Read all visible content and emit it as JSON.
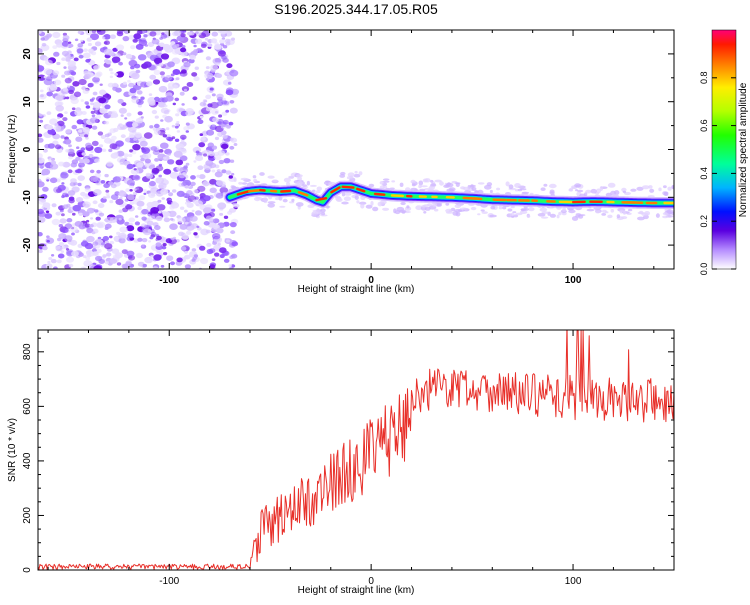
{
  "title": "S196.2025.344.17.05.R05",
  "chart_data": [
    {
      "type": "heatmap",
      "xlabel": "Height of straight line (km)",
      "ylabel": "Frequency (Hz)",
      "xlim": [
        -165,
        150
      ],
      "ylim": [
        -25,
        25
      ],
      "xticks": [
        -100,
        0,
        100
      ],
      "yticks": [
        -20,
        -10,
        0,
        10,
        20
      ],
      "noise_region_x": [
        -165,
        -67
      ],
      "ridge": {
        "x": [
          -70,
          -62,
          -55,
          -45,
          -38,
          -32,
          -27,
          -24,
          -20,
          -15,
          -10,
          -5,
          0,
          10,
          20,
          30,
          40,
          50,
          60,
          70,
          80,
          90,
          100,
          110,
          120,
          130,
          140,
          150
        ],
        "freq": [
          -10,
          -8.8,
          -8.5,
          -8.8,
          -8.6,
          -9.5,
          -10.6,
          -11,
          -9,
          -7.8,
          -7.8,
          -8.5,
          -9.2,
          -9.6,
          -9.8,
          -9.9,
          -10,
          -10.2,
          -10.5,
          -10.6,
          -10.7,
          -10.9,
          -11,
          -10.9,
          -11,
          -11.1,
          -11.2,
          -11.2
        ]
      },
      "colorbar": {
        "label": "Normalized spectral amplitude",
        "range": [
          0,
          1
        ],
        "ticks": [
          0,
          0.2,
          0.4,
          0.6,
          0.8
        ],
        "tick_labels": [
          "0.0",
          "0.2",
          "0.4",
          "0.6",
          "0.8"
        ]
      }
    },
    {
      "type": "line",
      "xlabel": "Height of straight line (km)",
      "ylabel": "SNR (10 * v/v)",
      "xlim": [
        -165,
        150
      ],
      "ylim": [
        0,
        880
      ],
      "xticks": [
        -100,
        0,
        100
      ],
      "yticks": [
        0,
        200,
        400,
        600,
        800
      ],
      "color": "#e8302a",
      "envelope": {
        "x": [
          -165,
          -60,
          -55,
          -45,
          -35,
          -25,
          -15,
          -5,
          5,
          15,
          20,
          25,
          30,
          40,
          60,
          80,
          100,
          120,
          150
        ],
        "snr": [
          12,
          12,
          140,
          195,
          235,
          285,
          345,
          395,
          455,
          520,
          610,
          650,
          670,
          670,
          660,
          640,
          630,
          625,
          620
        ]
      }
    }
  ]
}
